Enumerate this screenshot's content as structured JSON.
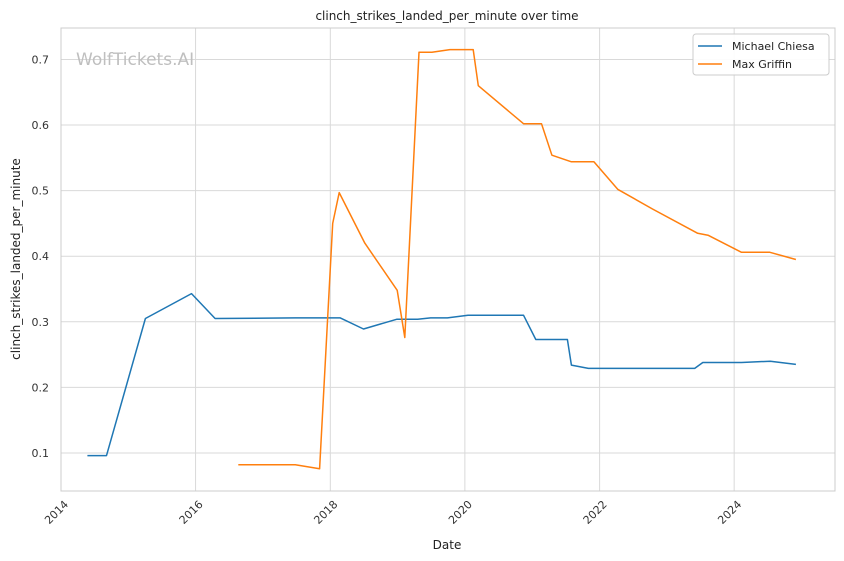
{
  "chart_data": {
    "type": "line",
    "title": "clinch_strikes_landed_per_minute over time",
    "xlabel": "Date",
    "ylabel": "clinch_strikes_landed_per_minute",
    "watermark": "WolfTickets.AI",
    "x_ticks": [
      "2014",
      "2016",
      "2018",
      "2020",
      "2022",
      "2024"
    ],
    "y_ticks": [
      "0.1",
      "0.2",
      "0.3",
      "0.4",
      "0.5",
      "0.6",
      "0.7"
    ],
    "xlim": [
      "2014-01-01",
      "2025-07-01"
    ],
    "ylim": [
      0.042,
      0.748
    ],
    "grid": true,
    "legend_position": "top-right",
    "colors": {
      "series_1": "#1f77b4",
      "series_2": "#ff7f0e",
      "grid": "#d9d9d9",
      "axes": "#cccccc"
    },
    "series": [
      {
        "name": "Michael Chiesa",
        "color": "#1f77b4",
        "points": [
          [
            "2014-05-24",
            0.096
          ],
          [
            "2014-09-05",
            0.096
          ],
          [
            "2015-04-04",
            0.305
          ],
          [
            "2015-12-10",
            0.343
          ],
          [
            "2016-04-16",
            0.305
          ],
          [
            "2017-06-25",
            0.306
          ],
          [
            "2018-02-24",
            0.306
          ],
          [
            "2018-06-30",
            0.289
          ],
          [
            "2018-12-29",
            0.304
          ],
          [
            "2019-04-20",
            0.304
          ],
          [
            "2019-06-29",
            0.306
          ],
          [
            "2019-09-28",
            0.306
          ],
          [
            "2020-01-18",
            0.31
          ],
          [
            "2020-11-14",
            0.31
          ],
          [
            "2021-01-20",
            0.273
          ],
          [
            "2021-07-10",
            0.273
          ],
          [
            "2021-08-01",
            0.234
          ],
          [
            "2021-11-01",
            0.229
          ],
          [
            "2023-06-01",
            0.229
          ],
          [
            "2023-07-15",
            0.238
          ],
          [
            "2024-02-10",
            0.238
          ],
          [
            "2024-07-15",
            0.24
          ],
          [
            "2024-12-01",
            0.235
          ]
        ]
      },
      {
        "name": "Max Griffin",
        "color": "#ff7f0e",
        "points": [
          [
            "2016-08-20",
            0.082
          ],
          [
            "2017-06-25",
            0.082
          ],
          [
            "2017-11-04",
            0.076
          ],
          [
            "2018-01-14",
            0.45
          ],
          [
            "2018-02-18",
            0.497
          ],
          [
            "2018-07-07",
            0.42
          ],
          [
            "2018-12-30",
            0.348
          ],
          [
            "2019-02-09",
            0.276
          ],
          [
            "2019-04-27",
            0.711
          ],
          [
            "2019-07-06",
            0.711
          ],
          [
            "2019-10-12",
            0.715
          ],
          [
            "2020-02-15",
            0.715
          ],
          [
            "2020-03-14",
            0.66
          ],
          [
            "2020-11-14",
            0.602
          ],
          [
            "2021-02-20",
            0.602
          ],
          [
            "2021-04-17",
            0.554
          ],
          [
            "2021-08-01",
            0.544
          ],
          [
            "2021-12-01",
            0.544
          ],
          [
            "2022-04-09",
            0.502
          ],
          [
            "2022-10-15",
            0.472
          ],
          [
            "2023-06-17",
            0.435
          ],
          [
            "2023-08-12",
            0.432
          ],
          [
            "2024-02-10",
            0.406
          ],
          [
            "2024-07-13",
            0.406
          ],
          [
            "2024-12-01",
            0.395
          ]
        ]
      }
    ]
  }
}
